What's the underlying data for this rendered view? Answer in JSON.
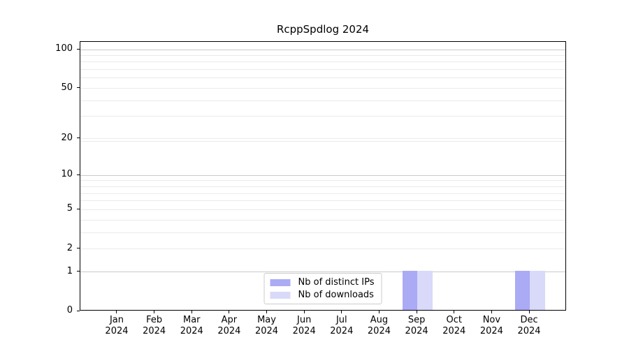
{
  "figure": {
    "background": "#ffffff",
    "title": "RcppSpdlog 2024"
  },
  "chart_data": {
    "type": "bar",
    "title": "RcppSpdlog 2024",
    "x": {
      "months": [
        "Jan",
        "Feb",
        "Mar",
        "Apr",
        "May",
        "Jun",
        "Jul",
        "Aug",
        "Sep",
        "Oct",
        "Nov",
        "Dec"
      ],
      "year": "2024"
    },
    "series": [
      {
        "name": "Nb of distinct IPs",
        "color": "#aaaaf5",
        "values": [
          0,
          0,
          0,
          0,
          0,
          0,
          0,
          0,
          1,
          0,
          0,
          1
        ]
      },
      {
        "name": "Nb of downloads",
        "color": "#d9d9f9",
        "values": [
          0,
          0,
          0,
          0,
          0,
          0,
          0,
          0,
          1,
          0,
          0,
          1
        ]
      }
    ],
    "y_axis": {
      "scale": "log1p",
      "ylim": [
        0,
        100
      ],
      "tick_values": [
        0,
        1,
        2,
        5,
        10,
        20,
        50,
        100
      ],
      "tick_labels": [
        "0",
        "1",
        "2",
        "5",
        "10",
        "20",
        "50",
        "100"
      ],
      "gridlines": {
        "major_values": [
          1,
          10,
          100
        ],
        "minor_values": [
          2,
          3,
          4,
          5,
          6,
          7,
          8,
          9,
          19,
          20,
          30,
          40,
          50,
          60,
          70,
          80,
          90
        ],
        "major_color": "#c9c9c9",
        "minor_color": "#eaeaea"
      }
    },
    "legend": {
      "position": "lower center",
      "items": [
        {
          "label": "Nb of distinct IPs",
          "color": "#aaaaf5"
        },
        {
          "label": "Nb of downloads",
          "color": "#d9d9f9"
        }
      ]
    }
  }
}
